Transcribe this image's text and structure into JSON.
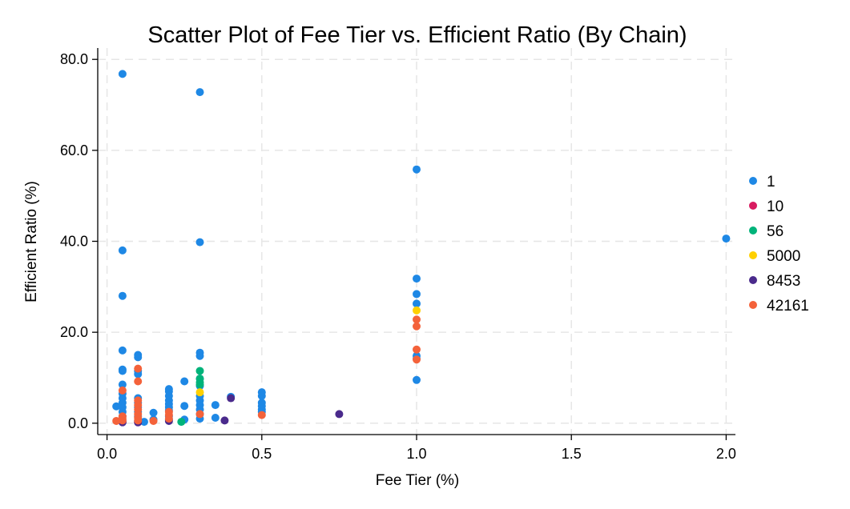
{
  "chart_data": {
    "type": "scatter",
    "title": "Scatter Plot of Fee Tier vs. Efficient Ratio (By Chain)",
    "xlabel": "Fee Tier (%)",
    "ylabel": "Efficient Ratio (%)",
    "xlim": [
      -0.03,
      2.03
    ],
    "ylim": [
      -2.5,
      82.5
    ],
    "xticks": [
      0.0,
      0.5,
      1.0,
      1.5,
      2.0
    ],
    "xtick_labels": [
      "0.0",
      "0.5",
      "1.0",
      "1.5",
      "2.0"
    ],
    "yticks": [
      0,
      20,
      40,
      60,
      80
    ],
    "ytick_labels": [
      "0.0",
      "20.0",
      "40.0",
      "60.0",
      "80.0"
    ],
    "grid": true,
    "legend_position": "right",
    "series": [
      {
        "name": "1",
        "color": "#1e88e5",
        "points": [
          [
            0.05,
            76.8
          ],
          [
            0.05,
            38.0
          ],
          [
            0.05,
            28.0
          ],
          [
            0.05,
            16.0
          ],
          [
            0.05,
            11.8
          ],
          [
            0.05,
            11.5
          ],
          [
            0.05,
            8.5
          ],
          [
            0.05,
            6.5
          ],
          [
            0.05,
            5.5
          ],
          [
            0.05,
            4.5
          ],
          [
            0.05,
            3.5
          ],
          [
            0.05,
            2.5
          ],
          [
            0.05,
            1.5
          ],
          [
            0.05,
            0.5
          ],
          [
            0.03,
            3.7
          ],
          [
            0.1,
            15.0
          ],
          [
            0.1,
            14.5
          ],
          [
            0.1,
            11.5
          ],
          [
            0.1,
            10.8
          ],
          [
            0.1,
            5.5
          ],
          [
            0.1,
            4.5
          ],
          [
            0.1,
            3.5
          ],
          [
            0.1,
            2.5
          ],
          [
            0.1,
            1.5
          ],
          [
            0.1,
            0.5
          ],
          [
            0.12,
            0.3
          ],
          [
            0.15,
            2.3
          ],
          [
            0.15,
            0.8
          ],
          [
            0.2,
            7.5
          ],
          [
            0.2,
            7.0
          ],
          [
            0.2,
            6.0
          ],
          [
            0.2,
            5.0
          ],
          [
            0.2,
            4.2
          ],
          [
            0.2,
            3.5
          ],
          [
            0.2,
            2.8
          ],
          [
            0.2,
            1.5
          ],
          [
            0.2,
            0.8
          ],
          [
            0.25,
            9.2
          ],
          [
            0.25,
            3.8
          ],
          [
            0.25,
            0.8
          ],
          [
            0.3,
            72.8
          ],
          [
            0.3,
            39.8
          ],
          [
            0.3,
            15.5
          ],
          [
            0.3,
            14.8
          ],
          [
            0.3,
            9.8
          ],
          [
            0.3,
            8.2
          ],
          [
            0.3,
            6.0
          ],
          [
            0.3,
            5.0
          ],
          [
            0.3,
            4.0
          ],
          [
            0.3,
            3.0
          ],
          [
            0.3,
            2.0
          ],
          [
            0.3,
            1.0
          ],
          [
            0.35,
            4.0
          ],
          [
            0.35,
            1.2
          ],
          [
            0.4,
            5.8
          ],
          [
            0.5,
            6.8
          ],
          [
            0.5,
            6.0
          ],
          [
            0.5,
            4.5
          ],
          [
            0.5,
            3.8
          ],
          [
            0.5,
            3.0
          ],
          [
            0.5,
            2.5
          ],
          [
            1.0,
            55.8
          ],
          [
            1.0,
            31.8
          ],
          [
            1.0,
            28.4
          ],
          [
            1.0,
            26.3
          ],
          [
            1.0,
            14.8
          ],
          [
            1.0,
            14.2
          ],
          [
            1.0,
            9.5
          ],
          [
            2.0,
            40.6
          ]
        ]
      },
      {
        "name": "10",
        "color": "#d81b60",
        "points": [
          [
            0.05,
            0.3
          ],
          [
            0.1,
            0.2
          ]
        ]
      },
      {
        "name": "56",
        "color": "#00b37a",
        "points": [
          [
            0.3,
            11.5
          ],
          [
            0.3,
            9.8
          ],
          [
            0.3,
            9.0
          ],
          [
            0.3,
            8.5
          ],
          [
            0.24,
            0.3
          ]
        ]
      },
      {
        "name": "5000",
        "color": "#ffd000",
        "points": [
          [
            0.3,
            6.8
          ],
          [
            1.0,
            24.8
          ]
        ]
      },
      {
        "name": "8453",
        "color": "#4a2a8c",
        "points": [
          [
            0.75,
            2.0
          ],
          [
            0.4,
            5.5
          ],
          [
            0.38,
            0.6
          ],
          [
            0.2,
            0.5
          ],
          [
            0.1,
            0.2
          ],
          [
            0.05,
            0.2
          ]
        ]
      },
      {
        "name": "42161",
        "color": "#f4623a",
        "points": [
          [
            0.03,
            0.5
          ],
          [
            0.05,
            7.2
          ],
          [
            0.05,
            1.5
          ],
          [
            0.05,
            1.0
          ],
          [
            0.05,
            0.6
          ],
          [
            0.1,
            12.0
          ],
          [
            0.1,
            9.2
          ],
          [
            0.1,
            5.0
          ],
          [
            0.1,
            4.0
          ],
          [
            0.1,
            3.0
          ],
          [
            0.1,
            2.0
          ],
          [
            0.1,
            1.2
          ],
          [
            0.1,
            0.6
          ],
          [
            0.15,
            0.5
          ],
          [
            0.2,
            2.5
          ],
          [
            0.2,
            1.8
          ],
          [
            0.2,
            1.0
          ],
          [
            0.3,
            2.0
          ],
          [
            0.5,
            1.8
          ],
          [
            1.0,
            22.8
          ],
          [
            1.0,
            21.3
          ],
          [
            1.0,
            16.2
          ],
          [
            1.0,
            14.0
          ]
        ]
      }
    ]
  }
}
